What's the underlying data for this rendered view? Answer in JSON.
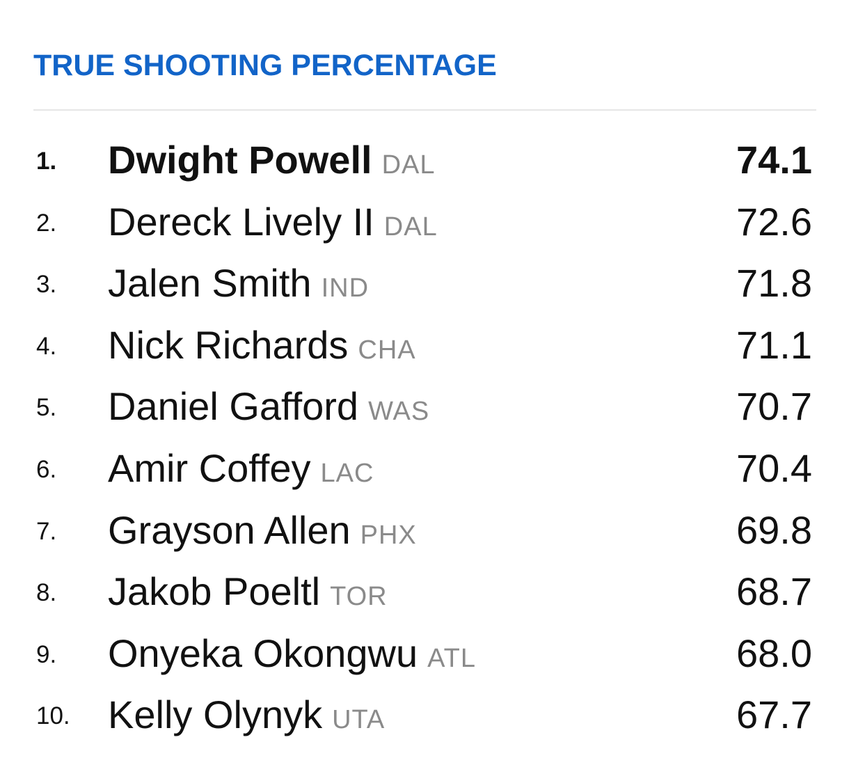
{
  "header": {
    "title": "TRUE SHOOTING PERCENTAGE"
  },
  "leaders": [
    {
      "rank": "1.",
      "name": "Dwight Powell",
      "team": "DAL",
      "value": "74.1"
    },
    {
      "rank": "2.",
      "name": "Dereck Lively II",
      "team": "DAL",
      "value": "72.6"
    },
    {
      "rank": "3.",
      "name": "Jalen Smith",
      "team": "IND",
      "value": "71.8"
    },
    {
      "rank": "4.",
      "name": "Nick Richards",
      "team": "CHA",
      "value": "71.1"
    },
    {
      "rank": "5.",
      "name": "Daniel Gafford",
      "team": "WAS",
      "value": "70.7"
    },
    {
      "rank": "6.",
      "name": "Amir Coffey",
      "team": "LAC",
      "value": "70.4"
    },
    {
      "rank": "7.",
      "name": "Grayson Allen",
      "team": "PHX",
      "value": "69.8"
    },
    {
      "rank": "8.",
      "name": "Jakob Poeltl",
      "team": "TOR",
      "value": "68.7"
    },
    {
      "rank": "9.",
      "name": "Onyeka Okongwu",
      "team": "ATL",
      "value": "68.0"
    },
    {
      "rank": "10.",
      "name": "Kelly Olynyk",
      "team": "UTA",
      "value": "67.7"
    }
  ],
  "colors": {
    "title": "#1264c8",
    "team": "#8a8a8a",
    "divider": "#e6e6e6"
  }
}
